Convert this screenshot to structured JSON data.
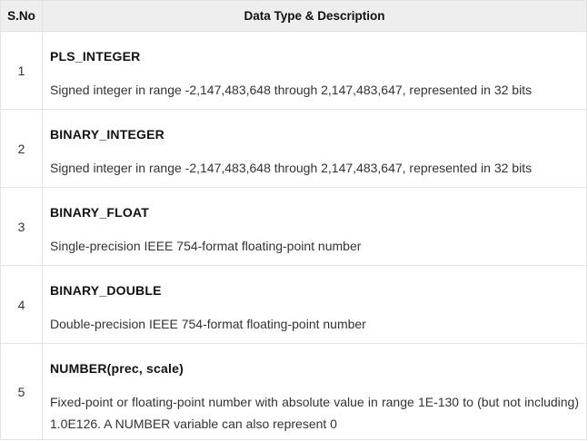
{
  "table": {
    "headers": {
      "sno": "S.No",
      "description": "Data Type & Description"
    },
    "rows": [
      {
        "num": "1",
        "name": "PLS_INTEGER",
        "description": "Signed integer in range -2,147,483,648 through 2,147,483,647, represented in 32 bits"
      },
      {
        "num": "2",
        "name": "BINARY_INTEGER",
        "description": "Signed integer in range -2,147,483,648 through 2,147,483,647, represented in 32 bits"
      },
      {
        "num": "3",
        "name": "BINARY_FLOAT",
        "description": "Single-precision IEEE 754-format floating-point number"
      },
      {
        "num": "4",
        "name": "BINARY_DOUBLE",
        "description": "Double-precision IEEE 754-format floating-point number"
      },
      {
        "num": "5",
        "name": "NUMBER(prec, scale)",
        "description": "Fixed-point or floating-point number with absolute value in range 1E-130 to (but not including) 1.0E126. A NUMBER variable can also represent 0"
      }
    ]
  }
}
